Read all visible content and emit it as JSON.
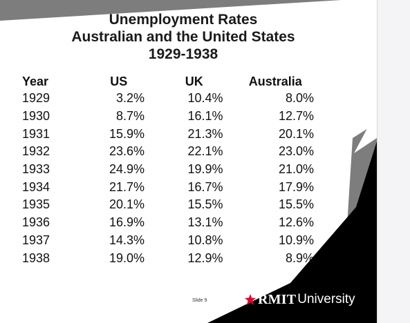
{
  "slide": {
    "title_lines": [
      "Unemployment Rates",
      "Australian and the United States",
      "1929-1938"
    ],
    "table": {
      "headers": [
        "Year",
        "US",
        "UK",
        "Australia"
      ],
      "rows": [
        [
          "1929",
          "3.2%",
          "10.4%",
          "8.0%"
        ],
        [
          "1930",
          "8.7%",
          "16.1%",
          "12.7%"
        ],
        [
          "1931",
          "15.9%",
          "21.3%",
          "20.1%"
        ],
        [
          "1932",
          "23.6%",
          "22.1%",
          "23.0%"
        ],
        [
          "1933",
          "24.9%",
          "19.9%",
          "21.0%"
        ],
        [
          "1934",
          "21.7%",
          "16.7%",
          "17.9%"
        ],
        [
          "1935",
          "20.1%",
          "15.5%",
          "15.5%"
        ],
        [
          "1936",
          "16.9%",
          "13.1%",
          "12.6%"
        ],
        [
          "1937",
          "14.3%",
          "10.8%",
          "10.9%"
        ],
        [
          "1938",
          "19.0%",
          "12.9%",
          "8.9%"
        ]
      ]
    },
    "slide_number": "Slide 9",
    "logo": {
      "rmit": "RMIT",
      "university": "University",
      "star_color": "#e4002b"
    }
  },
  "colors": {
    "slide_background": "#7d7d7d",
    "panel": "#ffffff",
    "accent_dark": "#000000",
    "page_background": "#f4f4f6"
  }
}
